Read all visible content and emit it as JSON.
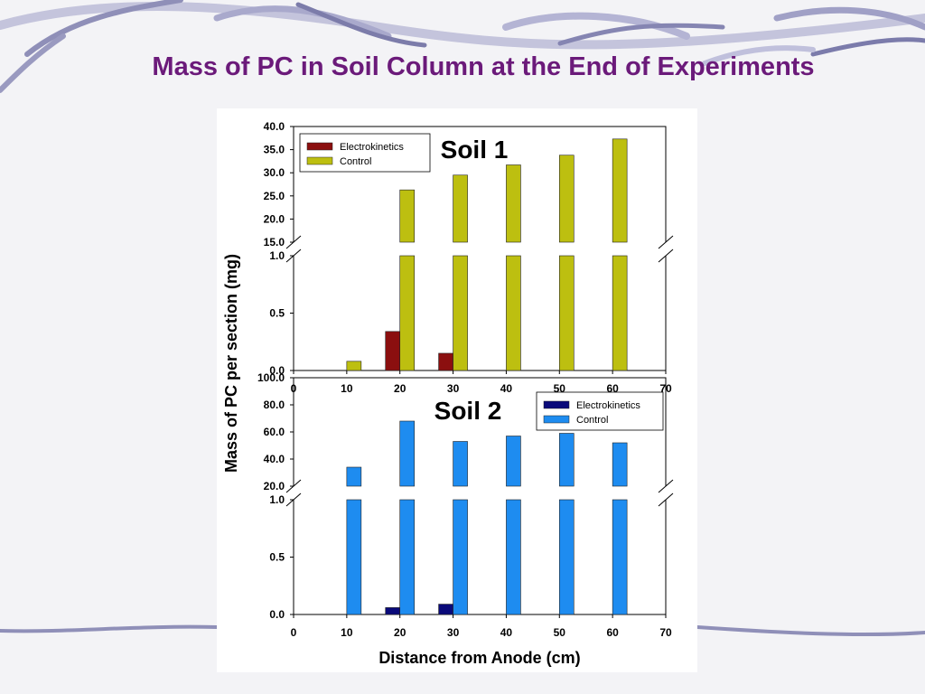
{
  "slide": {
    "title": "Mass of PC in Soil Column at the End of Experiments"
  },
  "chart_data": [
    {
      "type": "bar",
      "panel_label": "Soil 1",
      "xlabel": "",
      "ylabel": "Mass of PC per section (mg)",
      "x_ticks": [
        "0",
        "10",
        "20",
        "30",
        "40",
        "50",
        "60",
        "70"
      ],
      "xlim": [
        0,
        70
      ],
      "categories": [
        "10",
        "20",
        "30",
        "40",
        "50",
        "60"
      ],
      "series": [
        {
          "name": "Electrokinetics",
          "color": "#8b0f0f",
          "values": [
            0,
            0.34,
            0.15,
            0,
            0,
            0
          ]
        },
        {
          "name": "Control",
          "color": "#bdbf10",
          "values": [
            0.08,
            26.3,
            29.5,
            31.7,
            33.8,
            37.3
          ]
        }
      ],
      "y_axis_break": true,
      "lower_segment": {
        "ylim": [
          0,
          1.0
        ],
        "ticks": [
          "0.0",
          "0.5",
          "1.0"
        ]
      },
      "upper_segment": {
        "ylim": [
          15.0,
          40.0
        ],
        "ticks": [
          "15.0",
          "20.0",
          "25.0",
          "30.0",
          "35.0",
          "40.0"
        ]
      },
      "legend": {
        "placement": "top-left",
        "entries": [
          "Electrokinetics",
          "Control"
        ]
      }
    },
    {
      "type": "bar",
      "panel_label": "Soil 2",
      "xlabel": "Distance from Anode (cm)",
      "ylabel": "Mass of PC per section (mg)",
      "x_ticks": [
        "0",
        "10",
        "20",
        "30",
        "40",
        "50",
        "60",
        "70"
      ],
      "xlim": [
        0,
        70
      ],
      "categories": [
        "10",
        "20",
        "30",
        "40",
        "50",
        "60"
      ],
      "series": [
        {
          "name": "Electrokinetics",
          "color": "#0a0a7a",
          "values": [
            0,
            0.06,
            0.09,
            0,
            0,
            0
          ]
        },
        {
          "name": "Control",
          "color": "#1e8cf0",
          "values": [
            34,
            68,
            53,
            57,
            59,
            52
          ]
        }
      ],
      "y_axis_break": true,
      "lower_segment": {
        "ylim": [
          0,
          1.0
        ],
        "ticks": [
          "0.0",
          "0.5",
          "1.0"
        ]
      },
      "upper_segment": {
        "ylim": [
          20.0,
          100.0
        ],
        "ticks": [
          "20.0",
          "40.0",
          "60.0",
          "80.0",
          "100.0"
        ]
      },
      "legend": {
        "placement": "top-right",
        "entries": [
          "Electrokinetics",
          "Control"
        ]
      }
    }
  ]
}
